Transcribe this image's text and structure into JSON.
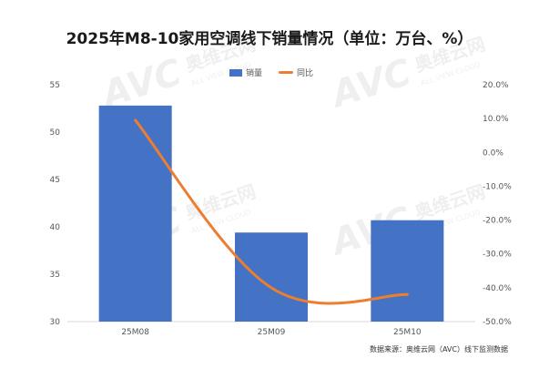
{
  "title": "2025年M8-10家用空调线下销量情况（单位：万台、%）",
  "source": "数据来源：奥维云网（AVC）线下监测数据",
  "watermark": {
    "brand": "AVC",
    "cn": "奥维云网",
    "en": "ALL VIEW CLOUD"
  },
  "colors": {
    "bar": "#4472c4",
    "line": "#ed7d31",
    "axis_text": "#555555"
  },
  "chart_data": {
    "type": "bar",
    "categories": [
      "25M08",
      "25M09",
      "25M10"
    ],
    "series": [
      {
        "name": "销量",
        "type": "bar",
        "axis": "left",
        "values": [
          52.8,
          39.4,
          40.7
        ]
      },
      {
        "name": "同比",
        "type": "line",
        "axis": "right",
        "values": [
          9.5,
          -40.0,
          -42.0
        ]
      }
    ],
    "left_axis": {
      "ylim": [
        30,
        55
      ],
      "ticks": [
        "30",
        "35",
        "40",
        "45",
        "50",
        "55"
      ]
    },
    "right_axis": {
      "ylim": [
        -50,
        20
      ],
      "ticks": [
        "-50.0%",
        "-40.0%",
        "-30.0%",
        "-20.0%",
        "-10.0%",
        "0.0%",
        "10.0%",
        "20.0%"
      ]
    },
    "legend_position": "top-center",
    "grid": false
  }
}
